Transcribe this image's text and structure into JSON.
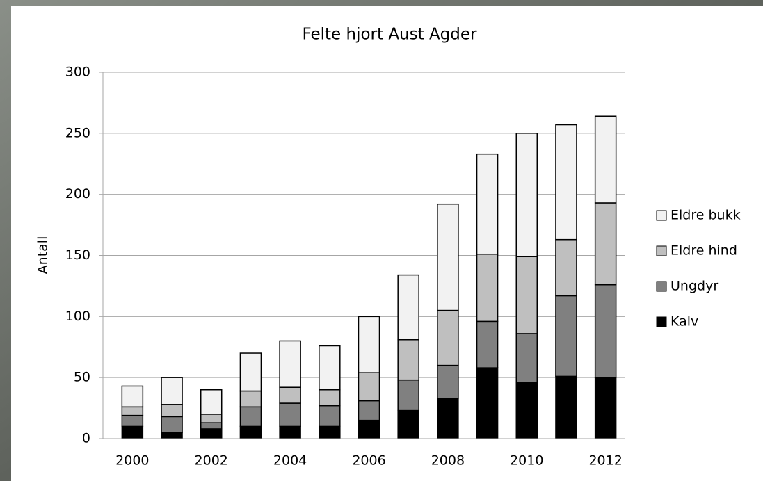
{
  "chart_data": {
    "type": "stacked_bar",
    "title": "Felte hjort Aust Agder",
    "y_label": "Antall",
    "categories": [
      "2000",
      null,
      "2002",
      null,
      "2004",
      null,
      "2006",
      null,
      "2008",
      null,
      "2010",
      null,
      "2012"
    ],
    "series": [
      {
        "name": "Kalv",
        "color": "#000000",
        "values": [
          10,
          5,
          8,
          10,
          10,
          10,
          15,
          23,
          33,
          58,
          46,
          51,
          50
        ]
      },
      {
        "name": "Ungdyr",
        "color": "#808080",
        "values": [
          9,
          13,
          5,
          16,
          19,
          17,
          16,
          25,
          27,
          38,
          40,
          66,
          76
        ]
      },
      {
        "name": "Eldre hind",
        "color": "#bfbfbf",
        "values": [
          7,
          10,
          7,
          13,
          13,
          13,
          23,
          33,
          45,
          55,
          63,
          46,
          67
        ]
      },
      {
        "name": "Eldre bukk",
        "color": "#f2f2f2",
        "values": [
          17,
          22,
          20,
          31,
          38,
          36,
          46,
          53,
          87,
          82,
          101,
          94,
          71
        ]
      }
    ],
    "ylim": [
      0,
      300
    ],
    "yticks": [
      0,
      50,
      100,
      150,
      200,
      250,
      300
    ],
    "grid": true,
    "legend": "right"
  }
}
